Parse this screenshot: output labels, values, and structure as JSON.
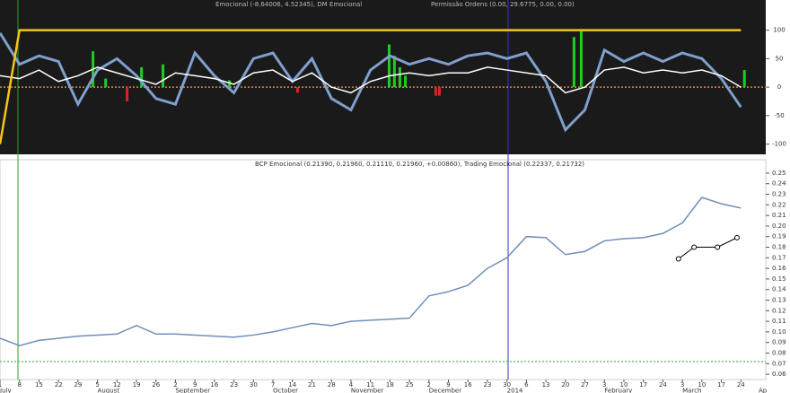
{
  "chart_data": [
    {
      "type": "line",
      "title": "Emocional (-8.64006, 4.52345), DM Emocional",
      "subtitle": "Permissão Ordens (0.00, 29.6775, 0.00, 0.00)",
      "x": [
        0,
        1,
        2,
        3,
        4,
        5,
        6,
        7,
        8,
        9,
        10,
        11,
        12,
        13,
        14,
        15,
        16,
        17,
        18,
        19,
        20,
        21,
        22,
        23,
        24,
        25,
        26,
        27,
        28,
        29,
        30,
        31,
        32,
        33,
        34,
        35,
        36,
        37,
        38
      ],
      "series": [
        {
          "color": "#7f9fcc",
          "values": [
            95,
            40,
            55,
            45,
            -30,
            30,
            50,
            20,
            -20,
            -30,
            60,
            20,
            -10,
            50,
            60,
            10,
            50,
            -20,
            -40,
            30,
            55,
            40,
            50,
            40,
            55,
            60,
            50,
            60,
            10,
            -75,
            -40,
            65,
            45,
            60,
            45,
            60,
            50,
            15,
            -35
          ]
        },
        {
          "color": "#ffffff",
          "values": [
            20,
            15,
            30,
            10,
            20,
            35,
            25,
            15,
            5,
            25,
            20,
            15,
            5,
            25,
            30,
            10,
            25,
            0,
            -10,
            10,
            20,
            25,
            20,
            25,
            25,
            35,
            30,
            25,
            20,
            -10,
            0,
            30,
            35,
            25,
            30,
            25,
            30,
            20,
            0
          ]
        },
        {
          "color": "#f5c518",
          "values": [
            -100,
            100,
            100,
            100,
            100,
            100,
            100,
            100,
            100,
            100,
            100,
            100,
            100,
            100,
            100,
            100,
            100,
            100,
            100,
            100,
            100,
            100,
            100,
            100,
            100,
            100,
            100,
            100,
            100,
            100,
            100,
            100,
            100,
            100,
            100,
            100,
            100,
            100,
            100
          ]
        }
      ],
      "bars": {
        "x": [
          4.77,
          5.42,
          7.26,
          8.36,
          11.77,
          19.96,
          20.23,
          20.51,
          20.79,
          29.44,
          29.81,
          38.18,
          6.52,
          15.26,
          22.35,
          22.54
        ],
        "values": [
          63,
          15,
          35,
          40,
          12,
          75,
          55,
          35,
          20,
          88,
          100,
          30,
          -25,
          -10,
          -15,
          -15
        ],
        "up_color": "#22cc22",
        "down_color": "#dd2222"
      },
      "zero_line_color": "#e8803a",
      "xlim": [
        0,
        39
      ],
      "ylim": [
        -118,
        153
      ],
      "yticks": [
        100,
        50,
        0,
        -50,
        -100
      ]
    },
    {
      "type": "line",
      "title": "BCP Emocional (0.21390, 0.21960, 0.21110, 0.21960, +0.00860), Trading Emocional (0.22337, 0.21732)",
      "x": [
        0,
        1,
        2,
        3,
        4,
        5,
        6,
        7,
        8,
        9,
        10,
        11,
        12,
        13,
        14,
        15,
        16,
        17,
        18,
        19,
        20,
        21,
        22,
        23,
        24,
        25,
        26,
        27,
        28,
        29,
        30,
        31,
        32,
        33,
        34,
        35,
        36,
        37,
        38
      ],
      "series": [
        {
          "color": "#6f8fb8",
          "values": [
            0.094,
            0.087,
            0.092,
            0.094,
            0.096,
            0.097,
            0.098,
            0.106,
            0.098,
            0.098,
            0.097,
            0.096,
            0.095,
            0.097,
            0.1,
            0.104,
            0.108,
            0.106,
            0.11,
            0.111,
            0.112,
            0.113,
            0.134,
            0.138,
            0.144,
            0.16,
            0.17,
            0.19,
            0.189,
            0.173,
            0.176,
            0.186,
            0.188,
            0.189,
            0.193,
            0.203,
            0.227,
            0.221,
            0.217
          ]
        }
      ],
      "segment": {
        "x": [
          34.8,
          35.6,
          36.8,
          37.8
        ],
        "values": [
          0.169,
          0.18,
          0.18,
          0.189
        ],
        "color": "#000000"
      },
      "hline": {
        "value": 0.072,
        "color": "#22aa22"
      },
      "xlim": [
        0,
        39
      ],
      "ylim": [
        0.055,
        0.255
      ],
      "yticks": [
        0.25,
        0.24,
        0.23,
        0.22,
        0.21,
        {
          "value": 0.2,
          "label": "0.20"
        },
        0.19,
        0.18,
        0.17,
        0.16,
        0.15,
        0.14,
        0.13,
        0.12,
        0.11,
        {
          "value": 0.1,
          "label": "0.10"
        },
        0.09,
        0.08,
        0.07,
        0.06
      ],
      "xticks": [
        {
          "value": 0,
          "label": "1"
        },
        {
          "value": 1,
          "label": "8"
        },
        {
          "value": 2,
          "label": "15"
        },
        {
          "value": 3,
          "label": "22"
        },
        {
          "value": 4,
          "label": "29"
        },
        {
          "value": 5,
          "label": "5"
        },
        {
          "value": 6,
          "label": "12"
        },
        {
          "value": 7,
          "label": "19"
        },
        {
          "value": 8,
          "label": "26"
        },
        {
          "value": 9,
          "label": "2"
        },
        {
          "value": 10,
          "label": "9"
        },
        {
          "value": 11,
          "label": "16"
        },
        {
          "value": 12,
          "label": "23"
        },
        {
          "value": 13,
          "label": "30"
        },
        {
          "value": 14,
          "label": "7"
        },
        {
          "value": 15,
          "label": "14"
        },
        {
          "value": 16,
          "label": "21"
        },
        {
          "value": 17,
          "label": "28"
        },
        {
          "value": 18,
          "label": "4"
        },
        {
          "value": 19,
          "label": "11"
        },
        {
          "value": 20,
          "label": "18"
        },
        {
          "value": 21,
          "label": "25"
        },
        {
          "value": 22,
          "label": "2"
        },
        {
          "value": 23,
          "label": "9"
        },
        {
          "value": 24,
          "label": "16"
        },
        {
          "value": 25,
          "label": "23"
        },
        {
          "value": 26,
          "label": "30"
        },
        {
          "value": 27,
          "label": "6"
        },
        {
          "value": 28,
          "label": "13"
        },
        {
          "value": 29,
          "label": "20"
        },
        {
          "value": 30,
          "label": "27"
        },
        {
          "value": 31,
          "label": "3"
        },
        {
          "value": 32,
          "label": "10"
        },
        {
          "value": 33,
          "label": "17"
        },
        {
          "value": 34,
          "label": "24"
        },
        {
          "value": 35,
          "label": "3"
        },
        {
          "value": 36,
          "label": "10"
        },
        {
          "value": 37,
          "label": "17"
        },
        {
          "value": 38,
          "label": "24"
        }
      ],
      "months": [
        {
          "value": 0,
          "label": "July"
        },
        {
          "value": 5,
          "label": "August"
        },
        {
          "value": 9,
          "label": "September"
        },
        {
          "value": 14,
          "label": "October"
        },
        {
          "value": 18,
          "label": "November"
        },
        {
          "value": 22,
          "label": "December"
        },
        {
          "value": 26,
          "label": "2014"
        },
        {
          "value": 31,
          "label": "February"
        },
        {
          "value": 35,
          "label": "March"
        },
        {
          "value": 39,
          "label": "Ap"
        }
      ]
    }
  ]
}
